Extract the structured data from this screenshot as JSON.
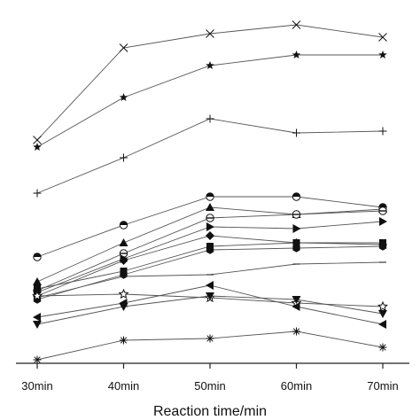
{
  "chart_data": {
    "type": "line",
    "xlabel": "Reaction time/min",
    "ylabel": "",
    "categories": [
      "30min",
      "40min",
      "50min",
      "60min",
      "70min"
    ],
    "ylim": [
      0,
      100
    ],
    "grid": false,
    "legend": "none",
    "colors": {
      "line": "#555555",
      "marker": "#111111",
      "axis": "#222222"
    },
    "series": [
      {
        "marker": "x",
        "values": [
          63,
          89,
          93,
          95.5,
          92
        ]
      },
      {
        "marker": "star",
        "values": [
          61,
          75,
          84,
          87,
          87
        ]
      },
      {
        "marker": "plus",
        "values": [
          48,
          58,
          69,
          65,
          65.5
        ]
      },
      {
        "marker": "half-circle",
        "values": [
          30,
          39,
          47,
          47,
          44
        ]
      },
      {
        "marker": "triangle-up",
        "values": [
          23,
          34,
          44,
          42,
          43.5
        ]
      },
      {
        "marker": "circle-dash",
        "values": [
          20.5,
          31,
          41,
          42,
          43
        ]
      },
      {
        "marker": "triangle-right",
        "values": [
          20,
          29.5,
          38.5,
          38,
          40
        ]
      },
      {
        "marker": "diamond",
        "values": [
          19,
          29,
          36,
          34,
          33.5
        ]
      },
      {
        "marker": "square",
        "values": [
          21,
          26,
          33,
          34,
          34
        ]
      },
      {
        "marker": "hexagon",
        "values": [
          18,
          25,
          32,
          32.5,
          33
        ]
      },
      {
        "marker": "dash",
        "values": [
          18.5,
          24.5,
          25,
          28,
          28.5
        ]
      },
      {
        "marker": "star-outline",
        "values": [
          19,
          19.5,
          18.5,
          17,
          16
        ]
      },
      {
        "marker": "triangle-left",
        "values": [
          13,
          17,
          22,
          16,
          11
        ]
      },
      {
        "marker": "triangle-down",
        "values": [
          11,
          16,
          19,
          18,
          14
        ]
      },
      {
        "marker": "asterisk",
        "values": [
          1,
          6.5,
          7,
          9,
          4.5
        ]
      }
    ]
  }
}
